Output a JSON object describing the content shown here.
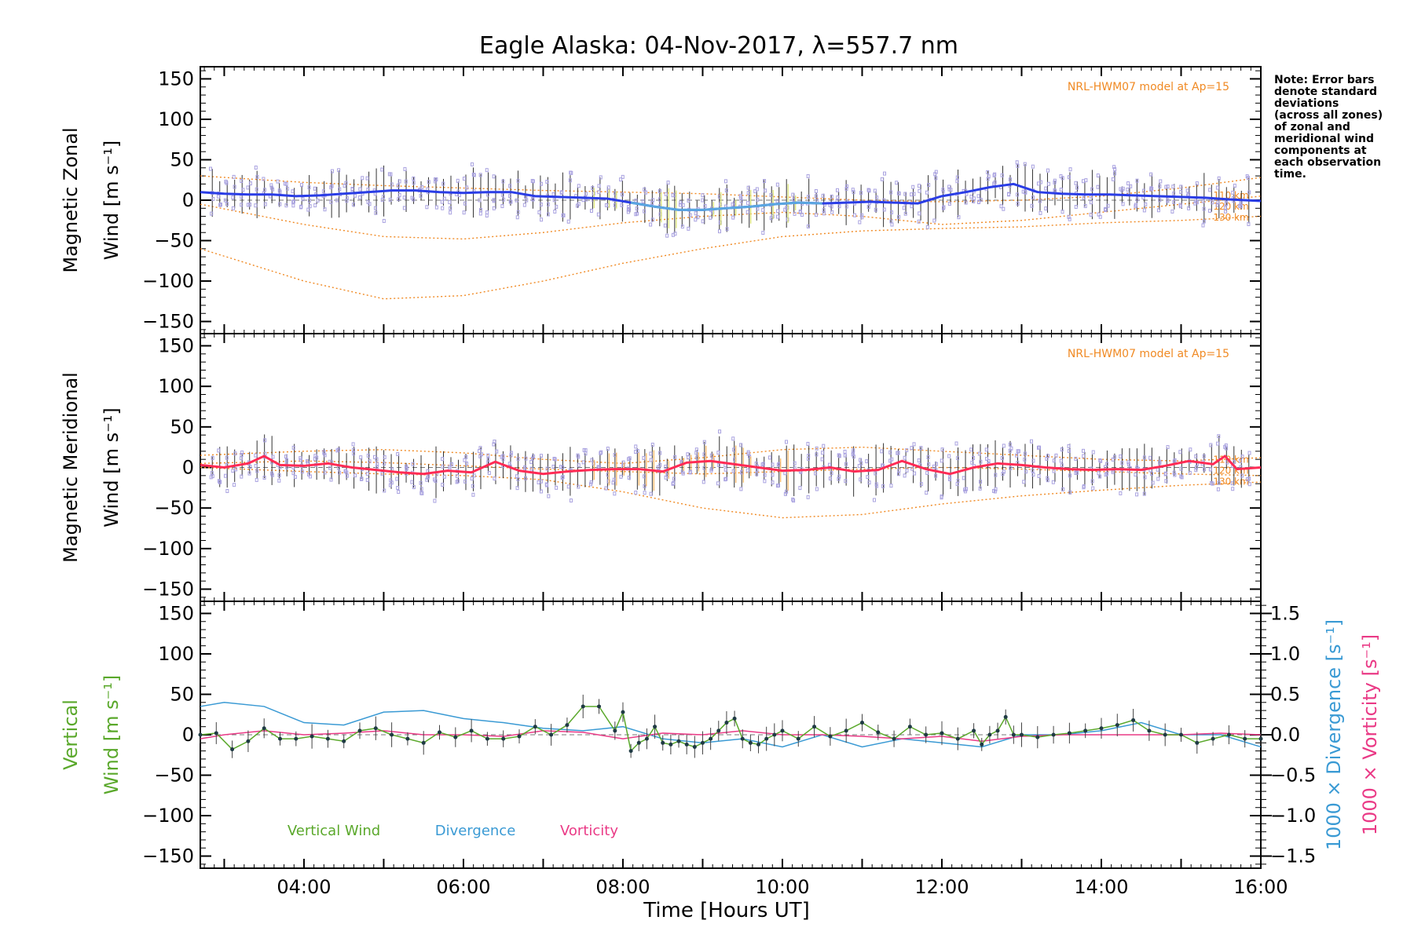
{
  "title": "Eagle Alaska: 04-Nov-2017, λ=557.7 nm",
  "note": [
    "Note: Error bars",
    "denote standard",
    "deviations",
    "(across all zones)",
    "of zonal and",
    "meridional wind",
    "components at",
    "each observation",
    "time."
  ],
  "colors": {
    "zonal": "#2a3de6",
    "zonal_light": "#5aa6e0",
    "meridional": "#ff2b55",
    "meridional_light": "#f6b35a",
    "model": "#f08a24",
    "zone_box": "#a9a2e0",
    "vertical": "#5aa82b",
    "divergence": "#3a9ad4",
    "vorticity": "#ea3a86",
    "errorbar": "#333333"
  },
  "panels": [
    {
      "id": "zonal",
      "ylabel_line1": "Magnetic Zonal",
      "ylabel_line2": "Wind [m s⁻¹]",
      "model_label": "NRL-HWM07 model at Ap=15",
      "model_levels": [
        "110 km",
        "120 km",
        "130 km"
      ]
    },
    {
      "id": "meridional",
      "ylabel_line1": "Magnetic Meridional",
      "ylabel_line2": "Wind [m s⁻¹]",
      "model_label": "NRL-HWM07 model at Ap=15",
      "model_levels": [
        "110 km",
        "120 km",
        "130 km"
      ]
    },
    {
      "id": "vertical",
      "ylabel_line1": "Vertical",
      "ylabel_line2": "Wind [m s⁻¹]",
      "right_label_div": "1000 × Divergence [s⁻¹]",
      "right_label_vor": "1000 × Vorticity [s⁻¹]",
      "legend": [
        "Vertical Wind",
        "Divergence",
        "Vorticity"
      ]
    }
  ],
  "y_ticks": [
    "150",
    "100",
    "50",
    "0",
    "−50",
    "−100",
    "−150"
  ],
  "right_ticks": [
    "1.5",
    "1.0",
    "0.5",
    "0.0",
    "−0.5",
    "−1.0",
    "−1.5"
  ],
  "x_ticks": [
    "04:00",
    "06:00",
    "08:00",
    "10:00",
    "12:00",
    "14:00",
    "16:00"
  ],
  "x_label": "Time [Hours UT]",
  "chart_data": [
    {
      "type": "line",
      "title": "Eagle Alaska: 04-Nov-2017, λ=557.7 nm",
      "xlabel": "Time [Hours UT]",
      "ylabel": "Magnetic Zonal Wind [m s⁻¹]",
      "xlim": [
        2.7,
        16.0
      ],
      "ylim": [
        -165,
        165
      ],
      "series": [
        {
          "name": "Magnetic Zonal Wind",
          "x": [
            2.7,
            3.0,
            3.3,
            3.6,
            3.9,
            4.2,
            4.5,
            4.8,
            5.1,
            5.4,
            5.7,
            6.0,
            6.3,
            6.6,
            6.9,
            7.2,
            7.5,
            7.8,
            8.1,
            8.4,
            8.7,
            9.0,
            9.3,
            9.6,
            9.9,
            10.2,
            10.5,
            10.8,
            11.1,
            11.4,
            11.7,
            12.0,
            12.3,
            12.6,
            12.9,
            13.2,
            13.5,
            13.8,
            14.1,
            14.4,
            14.7,
            15.0,
            15.3,
            15.6,
            16.0
          ],
          "values": [
            10,
            8,
            7,
            7,
            5,
            6,
            8,
            10,
            12,
            12,
            10,
            9,
            10,
            10,
            5,
            4,
            3,
            2,
            -3,
            -8,
            -12,
            -12,
            -10,
            -8,
            -5,
            -3,
            -4,
            -3,
            -2,
            -3,
            -4,
            5,
            10,
            16,
            20,
            10,
            8,
            7,
            7,
            6,
            5,
            4,
            3,
            1,
            -1
          ]
        }
      ],
      "model_series": [
        {
          "name": "110 km",
          "x": [
            2.7,
            4.0,
            5.0,
            6.0,
            7.0,
            8.0,
            9.0,
            10.0,
            11.0,
            12.0,
            13.0,
            14.0,
            15.0,
            16.0
          ],
          "values": [
            30,
            22,
            18,
            15,
            12,
            10,
            8,
            4,
            0,
            -2,
            0,
            5,
            15,
            28
          ]
        },
        {
          "name": "120 km",
          "x": [
            2.7,
            4.0,
            5.0,
            6.0,
            7.0,
            8.0,
            9.0,
            10.0,
            11.0,
            12.0,
            13.0,
            14.0,
            15.0,
            16.0
          ],
          "values": [
            -5,
            -30,
            -45,
            -48,
            -40,
            -28,
            -20,
            -15,
            -20,
            -30,
            -25,
            -15,
            -5,
            5
          ]
        },
        {
          "name": "130 km",
          "x": [
            2.7,
            4.0,
            5.0,
            6.0,
            7.0,
            8.0,
            9.0,
            10.0,
            11.0,
            12.0,
            13.0,
            14.0,
            15.0,
            16.0
          ],
          "values": [
            -60,
            -100,
            -122,
            -118,
            -100,
            -78,
            -60,
            -45,
            -38,
            -35,
            -33,
            -28,
            -25,
            -20
          ]
        }
      ]
    },
    {
      "type": "line",
      "xlabel": "Time [Hours UT]",
      "ylabel": "Magnetic Meridional Wind [m s⁻¹]",
      "xlim": [
        2.7,
        16.0
      ],
      "ylim": [
        -165,
        165
      ],
      "series": [
        {
          "name": "Magnetic Meridional Wind",
          "x": [
            2.7,
            3.0,
            3.3,
            3.5,
            3.7,
            4.0,
            4.3,
            4.6,
            4.9,
            5.2,
            5.5,
            5.8,
            6.1,
            6.4,
            6.7,
            7.0,
            7.3,
            7.6,
            7.9,
            8.2,
            8.5,
            8.8,
            9.1,
            9.4,
            9.7,
            10.0,
            10.3,
            10.6,
            10.9,
            11.2,
            11.5,
            11.8,
            12.1,
            12.4,
            12.7,
            13.0,
            13.3,
            13.6,
            13.9,
            14.2,
            14.5,
            14.8,
            15.1,
            15.4,
            15.55,
            15.7,
            16.0
          ],
          "values": [
            3,
            0,
            5,
            14,
            3,
            2,
            5,
            0,
            -3,
            -6,
            -8,
            -4,
            -6,
            7,
            -4,
            -8,
            -5,
            -3,
            -2,
            -2,
            -5,
            6,
            8,
            4,
            0,
            -4,
            -3,
            0,
            -5,
            -3,
            8,
            -2,
            -8,
            0,
            5,
            3,
            0,
            -2,
            -3,
            -2,
            -3,
            2,
            8,
            4,
            14,
            -2,
            0
          ]
        }
      ],
      "model_series": [
        {
          "name": "110 km",
          "x": [
            2.7,
            4.0,
            5.0,
            6.0,
            7.0,
            8.0,
            9.0,
            10.0,
            11.0,
            12.0,
            13.0,
            14.0,
            15.0,
            16.0
          ],
          "values": [
            15,
            20,
            22,
            18,
            10,
            5,
            12,
            22,
            25,
            20,
            15,
            10,
            8,
            12
          ]
        },
        {
          "name": "120 km",
          "x": [
            2.7,
            4.0,
            5.0,
            6.0,
            7.0,
            8.0,
            9.0,
            10.0,
            11.0,
            12.0,
            13.0,
            14.0,
            15.0,
            16.0
          ],
          "values": [
            5,
            8,
            6,
            2,
            -2,
            -5,
            -8,
            -5,
            -2,
            0,
            -2,
            -5,
            -8,
            -10
          ]
        },
        {
          "name": "130 km",
          "x": [
            2.7,
            4.0,
            5.0,
            6.0,
            7.0,
            8.0,
            9.0,
            10.0,
            11.0,
            12.0,
            13.0,
            14.0,
            15.0,
            16.0
          ],
          "values": [
            0,
            -5,
            -8,
            -10,
            -15,
            -30,
            -50,
            -62,
            -58,
            -45,
            -35,
            -28,
            -22,
            -18
          ]
        }
      ]
    },
    {
      "type": "line",
      "xlabel": "Time [Hours UT]",
      "ylabel": "Vertical Wind [m s⁻¹]",
      "y2label": "1000 × Divergence [s⁻¹] / 1000 × Vorticity [s⁻¹]",
      "xlim": [
        2.7,
        16.0
      ],
      "ylim": [
        -165,
        165
      ],
      "y2lim": [
        -1.5,
        1.5
      ],
      "series": [
        {
          "name": "Vertical Wind",
          "axis": "left",
          "x": [
            2.7,
            2.9,
            3.1,
            3.3,
            3.5,
            3.7,
            3.9,
            4.1,
            4.3,
            4.5,
            4.7,
            4.9,
            5.1,
            5.3,
            5.5,
            5.7,
            5.9,
            6.1,
            6.3,
            6.5,
            6.7,
            6.9,
            7.1,
            7.3,
            7.5,
            7.7,
            7.9,
            8.0,
            8.1,
            8.2,
            8.3,
            8.4,
            8.5,
            8.6,
            8.7,
            8.8,
            8.9,
            9.0,
            9.1,
            9.2,
            9.3,
            9.4,
            9.5,
            9.6,
            9.7,
            9.8,
            9.9,
            10.0,
            10.2,
            10.4,
            10.6,
            10.8,
            11.0,
            11.2,
            11.4,
            11.6,
            11.8,
            12.0,
            12.2,
            12.4,
            12.5,
            12.6,
            12.7,
            12.8,
            12.9,
            13.0,
            13.2,
            13.4,
            13.6,
            13.8,
            14.0,
            14.2,
            14.4,
            14.6,
            14.8,
            15.0,
            15.2,
            15.4,
            15.6,
            15.8,
            16.0
          ],
          "values": [
            0,
            2,
            -18,
            -8,
            8,
            -5,
            -5,
            -2,
            -5,
            -8,
            5,
            8,
            0,
            -5,
            -10,
            3,
            -3,
            5,
            -5,
            -5,
            -2,
            10,
            0,
            12,
            35,
            35,
            5,
            28,
            -20,
            -10,
            -5,
            10,
            -10,
            -12,
            -8,
            -12,
            -15,
            -10,
            -5,
            5,
            15,
            20,
            -5,
            -10,
            -12,
            -5,
            0,
            5,
            -5,
            10,
            -2,
            5,
            15,
            3,
            -5,
            10,
            0,
            2,
            -5,
            5,
            -12,
            0,
            5,
            22,
            0,
            0,
            -3,
            0,
            2,
            5,
            8,
            12,
            18,
            5,
            0,
            0,
            -10,
            -5,
            0,
            -5,
            -5
          ]
        },
        {
          "name": "Divergence",
          "axis": "right",
          "x": [
            2.7,
            3.0,
            3.5,
            4.0,
            4.5,
            5.0,
            5.5,
            6.0,
            6.5,
            7.0,
            7.5,
            8.0,
            8.5,
            9.0,
            9.5,
            10.0,
            10.5,
            11.0,
            11.5,
            12.0,
            12.5,
            13.0,
            13.5,
            14.0,
            14.5,
            15.0,
            15.5,
            16.0
          ],
          "values": [
            0.35,
            0.4,
            0.35,
            0.15,
            0.12,
            0.28,
            0.3,
            0.2,
            0.15,
            0.08,
            0.05,
            0.1,
            -0.05,
            -0.1,
            -0.05,
            -0.15,
            0.0,
            -0.15,
            -0.05,
            -0.1,
            -0.15,
            0.0,
            0.0,
            0.05,
            0.15,
            0.0,
            0.0,
            -0.15
          ]
        },
        {
          "name": "Vorticity",
          "axis": "right",
          "x": [
            2.7,
            3.0,
            3.5,
            4.0,
            4.5,
            5.0,
            5.5,
            6.0,
            6.5,
            7.0,
            7.5,
            8.0,
            8.5,
            9.0,
            9.5,
            10.0,
            10.5,
            11.0,
            11.5,
            12.0,
            12.5,
            13.0,
            13.5,
            14.0,
            14.5,
            15.0,
            15.5,
            16.0
          ],
          "values": [
            -0.05,
            0.0,
            0.05,
            0.0,
            0.02,
            0.05,
            0.0,
            0.0,
            -0.02,
            0.05,
            0.03,
            -0.05,
            0.02,
            0.0,
            0.05,
            0.0,
            0.0,
            -0.02,
            -0.05,
            -0.02,
            -0.08,
            -0.02,
            0.0,
            0.0,
            0.0,
            0.0,
            0.02,
            0.0
          ]
        }
      ]
    }
  ]
}
